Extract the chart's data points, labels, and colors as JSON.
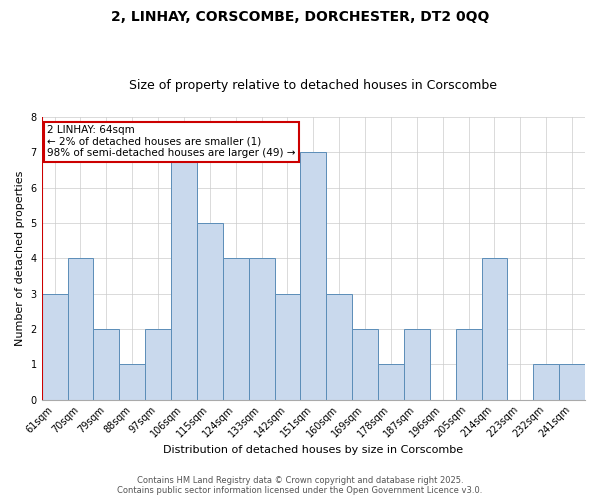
{
  "title": "2, LINHAY, CORSCOMBE, DORCHESTER, DT2 0QQ",
  "subtitle": "Size of property relative to detached houses in Corscombe",
  "xlabel": "Distribution of detached houses by size in Corscombe",
  "ylabel": "Number of detached properties",
  "categories": [
    "61sqm",
    "70sqm",
    "79sqm",
    "88sqm",
    "97sqm",
    "106sqm",
    "115sqm",
    "124sqm",
    "133sqm",
    "142sqm",
    "151sqm",
    "160sqm",
    "169sqm",
    "178sqm",
    "187sqm",
    "196sqm",
    "205sqm",
    "214sqm",
    "223sqm",
    "232sqm",
    "241sqm"
  ],
  "values": [
    3,
    4,
    2,
    1,
    2,
    7,
    5,
    4,
    4,
    3,
    7,
    3,
    2,
    1,
    2,
    0,
    2,
    4,
    0,
    1,
    1
  ],
  "bar_color": "#c9d9ed",
  "bar_edge_color": "#5b8db8",
  "highlight_line_color": "#cc0000",
  "annotation_text": "2 LINHAY: 64sqm\n← 2% of detached houses are smaller (1)\n98% of semi-detached houses are larger (49) →",
  "annotation_box_color": "#ffffff",
  "annotation_box_edge_color": "#cc0000",
  "ylim": [
    0,
    8
  ],
  "yticks": [
    0,
    1,
    2,
    3,
    4,
    5,
    6,
    7,
    8
  ],
  "footer1": "Contains HM Land Registry data © Crown copyright and database right 2025.",
  "footer2": "Contains public sector information licensed under the Open Government Licence v3.0.",
  "background_color": "#ffffff",
  "grid_color": "#cccccc",
  "title_fontsize": 10,
  "subtitle_fontsize": 9,
  "axis_label_fontsize": 8,
  "tick_fontsize": 7,
  "annotation_fontsize": 7.5,
  "footer_fontsize": 6
}
